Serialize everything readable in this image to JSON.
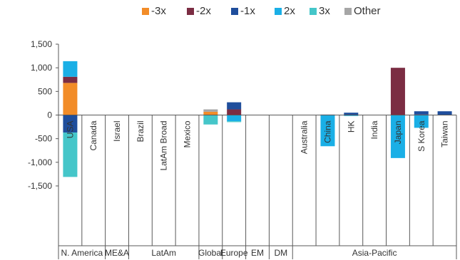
{
  "chart_data": {
    "type": "bar",
    "stacked": true,
    "legend_position": "top",
    "ylim": [
      -1500,
      1500
    ],
    "y_ticks": [
      -1500,
      -1000,
      -500,
      0,
      500,
      1000,
      1500
    ],
    "y_tick_labels": [
      "-1,500",
      "-1,000",
      "-500",
      "0",
      "500",
      "1,000",
      "1,500"
    ],
    "categories": [
      "USA",
      "Canada",
      "Israel",
      "Brazil",
      "LatAm Broad",
      "Mexico",
      "",
      "",
      "",
      "",
      "Australia",
      "China",
      "HK",
      "India",
      "Japan",
      "S Korea",
      "Taiwan"
    ],
    "groups": [
      {
        "label": "N. America",
        "span": 2
      },
      {
        "label": "ME&A",
        "span": 1
      },
      {
        "label": "LatAm",
        "span": 3
      },
      {
        "label": "Global",
        "span": 1
      },
      {
        "label": "Europe",
        "span": 1
      },
      {
        "label": "EM",
        "span": 1
      },
      {
        "label": "DM",
        "span": 1
      },
      {
        "label": "Asia-Pacific",
        "span": 7
      }
    ],
    "series": [
      {
        "name": "-3x",
        "color": "#F28C28",
        "values": [
          680,
          0,
          0,
          0,
          0,
          0,
          70,
          0,
          0,
          0,
          0,
          0,
          0,
          0,
          0,
          0,
          0
        ]
      },
      {
        "name": "-2x",
        "color": "#7B2D43",
        "values": [
          130,
          0,
          0,
          0,
          0,
          0,
          0,
          120,
          0,
          0,
          0,
          0,
          0,
          0,
          1000,
          10,
          0
        ]
      },
      {
        "name": "-1x",
        "color": "#1F4E9C",
        "values": [
          -370,
          0,
          0,
          0,
          0,
          0,
          0,
          150,
          0,
          0,
          0,
          10,
          50,
          0,
          0,
          70,
          80
        ]
      },
      {
        "name": "2x",
        "color": "#1AAFE6",
        "values": [
          330,
          0,
          0,
          0,
          0,
          0,
          0,
          -130,
          0,
          0,
          0,
          -660,
          -20,
          0,
          -910,
          -270,
          0
        ]
      },
      {
        "name": "3x",
        "color": "#45C6C9",
        "values": [
          -940,
          0,
          0,
          0,
          0,
          0,
          -200,
          -20,
          0,
          0,
          0,
          0,
          0,
          0,
          0,
          0,
          0
        ]
      },
      {
        "name": "Other",
        "color": "#A6A6A6",
        "values": [
          0,
          0,
          0,
          0,
          0,
          0,
          50,
          0,
          0,
          0,
          0,
          0,
          0,
          0,
          0,
          0,
          0
        ]
      }
    ]
  }
}
